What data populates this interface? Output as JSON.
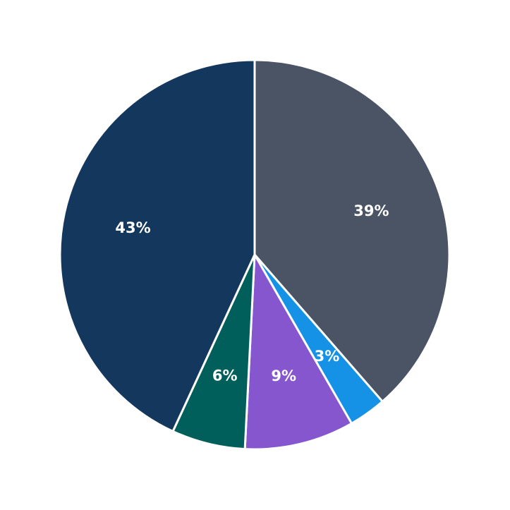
{
  "chart_data": {
    "type": "pie",
    "title": "",
    "start_angle": "12 o'clock",
    "direction": "clockwise",
    "slices": [
      {
        "label": "39%",
        "value": 38.6,
        "color": "#4a5464"
      },
      {
        "label": "3%",
        "value": 3.1,
        "color": "#1592e6"
      },
      {
        "label": "9%",
        "value": 9.1,
        "color": "#8556ce"
      },
      {
        "label": "6%",
        "value": 6.1,
        "color": "#005f5b"
      },
      {
        "label": "43%",
        "value": 43.1,
        "color": "#14375e"
      }
    ],
    "legend": null,
    "edge_color": "#ffffff"
  }
}
